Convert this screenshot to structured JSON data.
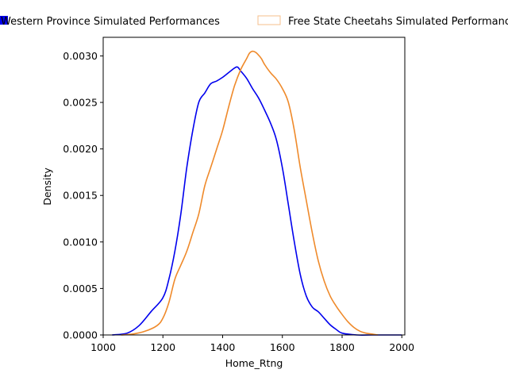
{
  "chart_data": {
    "type": "line",
    "title": "",
    "xlabel": "Home_Rtng",
    "ylabel": "Density",
    "xlim": [
      1000,
      2010
    ],
    "ylim": [
      0,
      0.0032
    ],
    "x_ticks": [
      1000,
      1200,
      1400,
      1600,
      1800,
      2000
    ],
    "x_tick_labels": [
      "1000",
      "1200",
      "1400",
      "1600",
      "1800",
      "2000"
    ],
    "y_ticks": [
      0,
      0.0005,
      0.001,
      0.0015,
      0.002,
      0.0025,
      0.003
    ],
    "y_tick_labels": [
      "0.0000",
      "0.0005",
      "0.0010",
      "0.0015",
      "0.0020",
      "0.0025",
      "0.0030"
    ],
    "grid": false,
    "legend_position": "top, above plot",
    "series": [
      {
        "name": "Western Province Simulated Performances",
        "color": "#0000ee",
        "legend_style": "filled patch",
        "x": [
          1030,
          1080,
          1120,
          1160,
          1200,
          1220,
          1240,
          1260,
          1280,
          1300,
          1320,
          1340,
          1360,
          1380,
          1400,
          1420,
          1440,
          1450,
          1460,
          1480,
          1500,
          1520,
          1540,
          1560,
          1580,
          1600,
          1620,
          1640,
          1660,
          1680,
          1700,
          1720,
          1740,
          1760,
          1780,
          1800,
          1850,
          1900,
          1950,
          2000
        ],
        "y": [
          0.0,
          2e-05,
          0.0001,
          0.00025,
          0.0004,
          0.0006,
          0.0009,
          0.0013,
          0.0018,
          0.0022,
          0.0025,
          0.0026,
          0.0027,
          0.00273,
          0.00277,
          0.00282,
          0.00287,
          0.00288,
          0.00284,
          0.00276,
          0.00265,
          0.00255,
          0.00242,
          0.00228,
          0.0021,
          0.0018,
          0.0014,
          0.001,
          0.00065,
          0.00042,
          0.0003,
          0.00025,
          0.00018,
          0.00011,
          6e-05,
          2e-05,
          0.0,
          0.0,
          0.0,
          0.0
        ]
      },
      {
        "name": "Free State Cheetahs Simulated Performances",
        "color": "#ef8a2b",
        "legend_style": "outline patch",
        "x": [
          1060,
          1100,
          1140,
          1180,
          1200,
          1220,
          1240,
          1260,
          1280,
          1300,
          1320,
          1340,
          1360,
          1380,
          1400,
          1420,
          1440,
          1460,
          1480,
          1490,
          1500,
          1510,
          1520,
          1530,
          1540,
          1560,
          1580,
          1600,
          1620,
          1640,
          1660,
          1680,
          1700,
          1720,
          1740,
          1760,
          1780,
          1800,
          1820,
          1840,
          1860,
          1880,
          1900,
          1920
        ],
        "y": [
          0.0,
          1e-05,
          4e-05,
          0.0001,
          0.00018,
          0.00035,
          0.0006,
          0.00075,
          0.0009,
          0.0011,
          0.0013,
          0.0016,
          0.0018,
          0.002,
          0.0022,
          0.00245,
          0.00268,
          0.00285,
          0.00297,
          0.00303,
          0.00305,
          0.00304,
          0.00301,
          0.00297,
          0.00291,
          0.00282,
          0.00275,
          0.00265,
          0.0025,
          0.0022,
          0.0018,
          0.00145,
          0.0011,
          0.0008,
          0.00058,
          0.00042,
          0.00031,
          0.00022,
          0.00014,
          8e-05,
          4e-05,
          2e-05,
          1e-05,
          0.0
        ]
      }
    ]
  }
}
